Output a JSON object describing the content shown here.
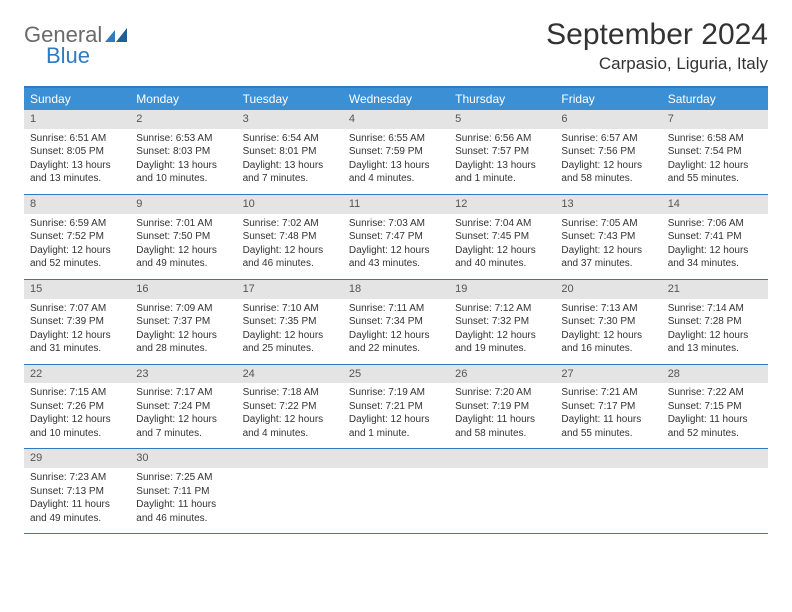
{
  "logo": {
    "part1": "General",
    "part2": "Blue"
  },
  "title": "September 2024",
  "location": "Carpasio, Liguria, Italy",
  "colors": {
    "header_bg": "#3b8fd4",
    "border": "#2f7ac0",
    "daynum_bg": "#e4e4e4",
    "text": "#333333"
  },
  "day_headers": [
    "Sunday",
    "Monday",
    "Tuesday",
    "Wednesday",
    "Thursday",
    "Friday",
    "Saturday"
  ],
  "weeks": [
    [
      {
        "n": "1",
        "sunrise": "Sunrise: 6:51 AM",
        "sunset": "Sunset: 8:05 PM",
        "daylight": "Daylight: 13 hours and 13 minutes."
      },
      {
        "n": "2",
        "sunrise": "Sunrise: 6:53 AM",
        "sunset": "Sunset: 8:03 PM",
        "daylight": "Daylight: 13 hours and 10 minutes."
      },
      {
        "n": "3",
        "sunrise": "Sunrise: 6:54 AM",
        "sunset": "Sunset: 8:01 PM",
        "daylight": "Daylight: 13 hours and 7 minutes."
      },
      {
        "n": "4",
        "sunrise": "Sunrise: 6:55 AM",
        "sunset": "Sunset: 7:59 PM",
        "daylight": "Daylight: 13 hours and 4 minutes."
      },
      {
        "n": "5",
        "sunrise": "Sunrise: 6:56 AM",
        "sunset": "Sunset: 7:57 PM",
        "daylight": "Daylight: 13 hours and 1 minute."
      },
      {
        "n": "6",
        "sunrise": "Sunrise: 6:57 AM",
        "sunset": "Sunset: 7:56 PM",
        "daylight": "Daylight: 12 hours and 58 minutes."
      },
      {
        "n": "7",
        "sunrise": "Sunrise: 6:58 AM",
        "sunset": "Sunset: 7:54 PM",
        "daylight": "Daylight: 12 hours and 55 minutes."
      }
    ],
    [
      {
        "n": "8",
        "sunrise": "Sunrise: 6:59 AM",
        "sunset": "Sunset: 7:52 PM",
        "daylight": "Daylight: 12 hours and 52 minutes."
      },
      {
        "n": "9",
        "sunrise": "Sunrise: 7:01 AM",
        "sunset": "Sunset: 7:50 PM",
        "daylight": "Daylight: 12 hours and 49 minutes."
      },
      {
        "n": "10",
        "sunrise": "Sunrise: 7:02 AM",
        "sunset": "Sunset: 7:48 PM",
        "daylight": "Daylight: 12 hours and 46 minutes."
      },
      {
        "n": "11",
        "sunrise": "Sunrise: 7:03 AM",
        "sunset": "Sunset: 7:47 PM",
        "daylight": "Daylight: 12 hours and 43 minutes."
      },
      {
        "n": "12",
        "sunrise": "Sunrise: 7:04 AM",
        "sunset": "Sunset: 7:45 PM",
        "daylight": "Daylight: 12 hours and 40 minutes."
      },
      {
        "n": "13",
        "sunrise": "Sunrise: 7:05 AM",
        "sunset": "Sunset: 7:43 PM",
        "daylight": "Daylight: 12 hours and 37 minutes."
      },
      {
        "n": "14",
        "sunrise": "Sunrise: 7:06 AM",
        "sunset": "Sunset: 7:41 PM",
        "daylight": "Daylight: 12 hours and 34 minutes."
      }
    ],
    [
      {
        "n": "15",
        "sunrise": "Sunrise: 7:07 AM",
        "sunset": "Sunset: 7:39 PM",
        "daylight": "Daylight: 12 hours and 31 minutes."
      },
      {
        "n": "16",
        "sunrise": "Sunrise: 7:09 AM",
        "sunset": "Sunset: 7:37 PM",
        "daylight": "Daylight: 12 hours and 28 minutes."
      },
      {
        "n": "17",
        "sunrise": "Sunrise: 7:10 AM",
        "sunset": "Sunset: 7:35 PM",
        "daylight": "Daylight: 12 hours and 25 minutes."
      },
      {
        "n": "18",
        "sunrise": "Sunrise: 7:11 AM",
        "sunset": "Sunset: 7:34 PM",
        "daylight": "Daylight: 12 hours and 22 minutes."
      },
      {
        "n": "19",
        "sunrise": "Sunrise: 7:12 AM",
        "sunset": "Sunset: 7:32 PM",
        "daylight": "Daylight: 12 hours and 19 minutes."
      },
      {
        "n": "20",
        "sunrise": "Sunrise: 7:13 AM",
        "sunset": "Sunset: 7:30 PM",
        "daylight": "Daylight: 12 hours and 16 minutes."
      },
      {
        "n": "21",
        "sunrise": "Sunrise: 7:14 AM",
        "sunset": "Sunset: 7:28 PM",
        "daylight": "Daylight: 12 hours and 13 minutes."
      }
    ],
    [
      {
        "n": "22",
        "sunrise": "Sunrise: 7:15 AM",
        "sunset": "Sunset: 7:26 PM",
        "daylight": "Daylight: 12 hours and 10 minutes."
      },
      {
        "n": "23",
        "sunrise": "Sunrise: 7:17 AM",
        "sunset": "Sunset: 7:24 PM",
        "daylight": "Daylight: 12 hours and 7 minutes."
      },
      {
        "n": "24",
        "sunrise": "Sunrise: 7:18 AM",
        "sunset": "Sunset: 7:22 PM",
        "daylight": "Daylight: 12 hours and 4 minutes."
      },
      {
        "n": "25",
        "sunrise": "Sunrise: 7:19 AM",
        "sunset": "Sunset: 7:21 PM",
        "daylight": "Daylight: 12 hours and 1 minute."
      },
      {
        "n": "26",
        "sunrise": "Sunrise: 7:20 AM",
        "sunset": "Sunset: 7:19 PM",
        "daylight": "Daylight: 11 hours and 58 minutes."
      },
      {
        "n": "27",
        "sunrise": "Sunrise: 7:21 AM",
        "sunset": "Sunset: 7:17 PM",
        "daylight": "Daylight: 11 hours and 55 minutes."
      },
      {
        "n": "28",
        "sunrise": "Sunrise: 7:22 AM",
        "sunset": "Sunset: 7:15 PM",
        "daylight": "Daylight: 11 hours and 52 minutes."
      }
    ],
    [
      {
        "n": "29",
        "sunrise": "Sunrise: 7:23 AM",
        "sunset": "Sunset: 7:13 PM",
        "daylight": "Daylight: 11 hours and 49 minutes."
      },
      {
        "n": "30",
        "sunrise": "Sunrise: 7:25 AM",
        "sunset": "Sunset: 7:11 PM",
        "daylight": "Daylight: 11 hours and 46 minutes."
      },
      {
        "n": "",
        "sunrise": "",
        "sunset": "",
        "daylight": ""
      },
      {
        "n": "",
        "sunrise": "",
        "sunset": "",
        "daylight": ""
      },
      {
        "n": "",
        "sunrise": "",
        "sunset": "",
        "daylight": ""
      },
      {
        "n": "",
        "sunrise": "",
        "sunset": "",
        "daylight": ""
      },
      {
        "n": "",
        "sunrise": "",
        "sunset": "",
        "daylight": ""
      }
    ]
  ]
}
